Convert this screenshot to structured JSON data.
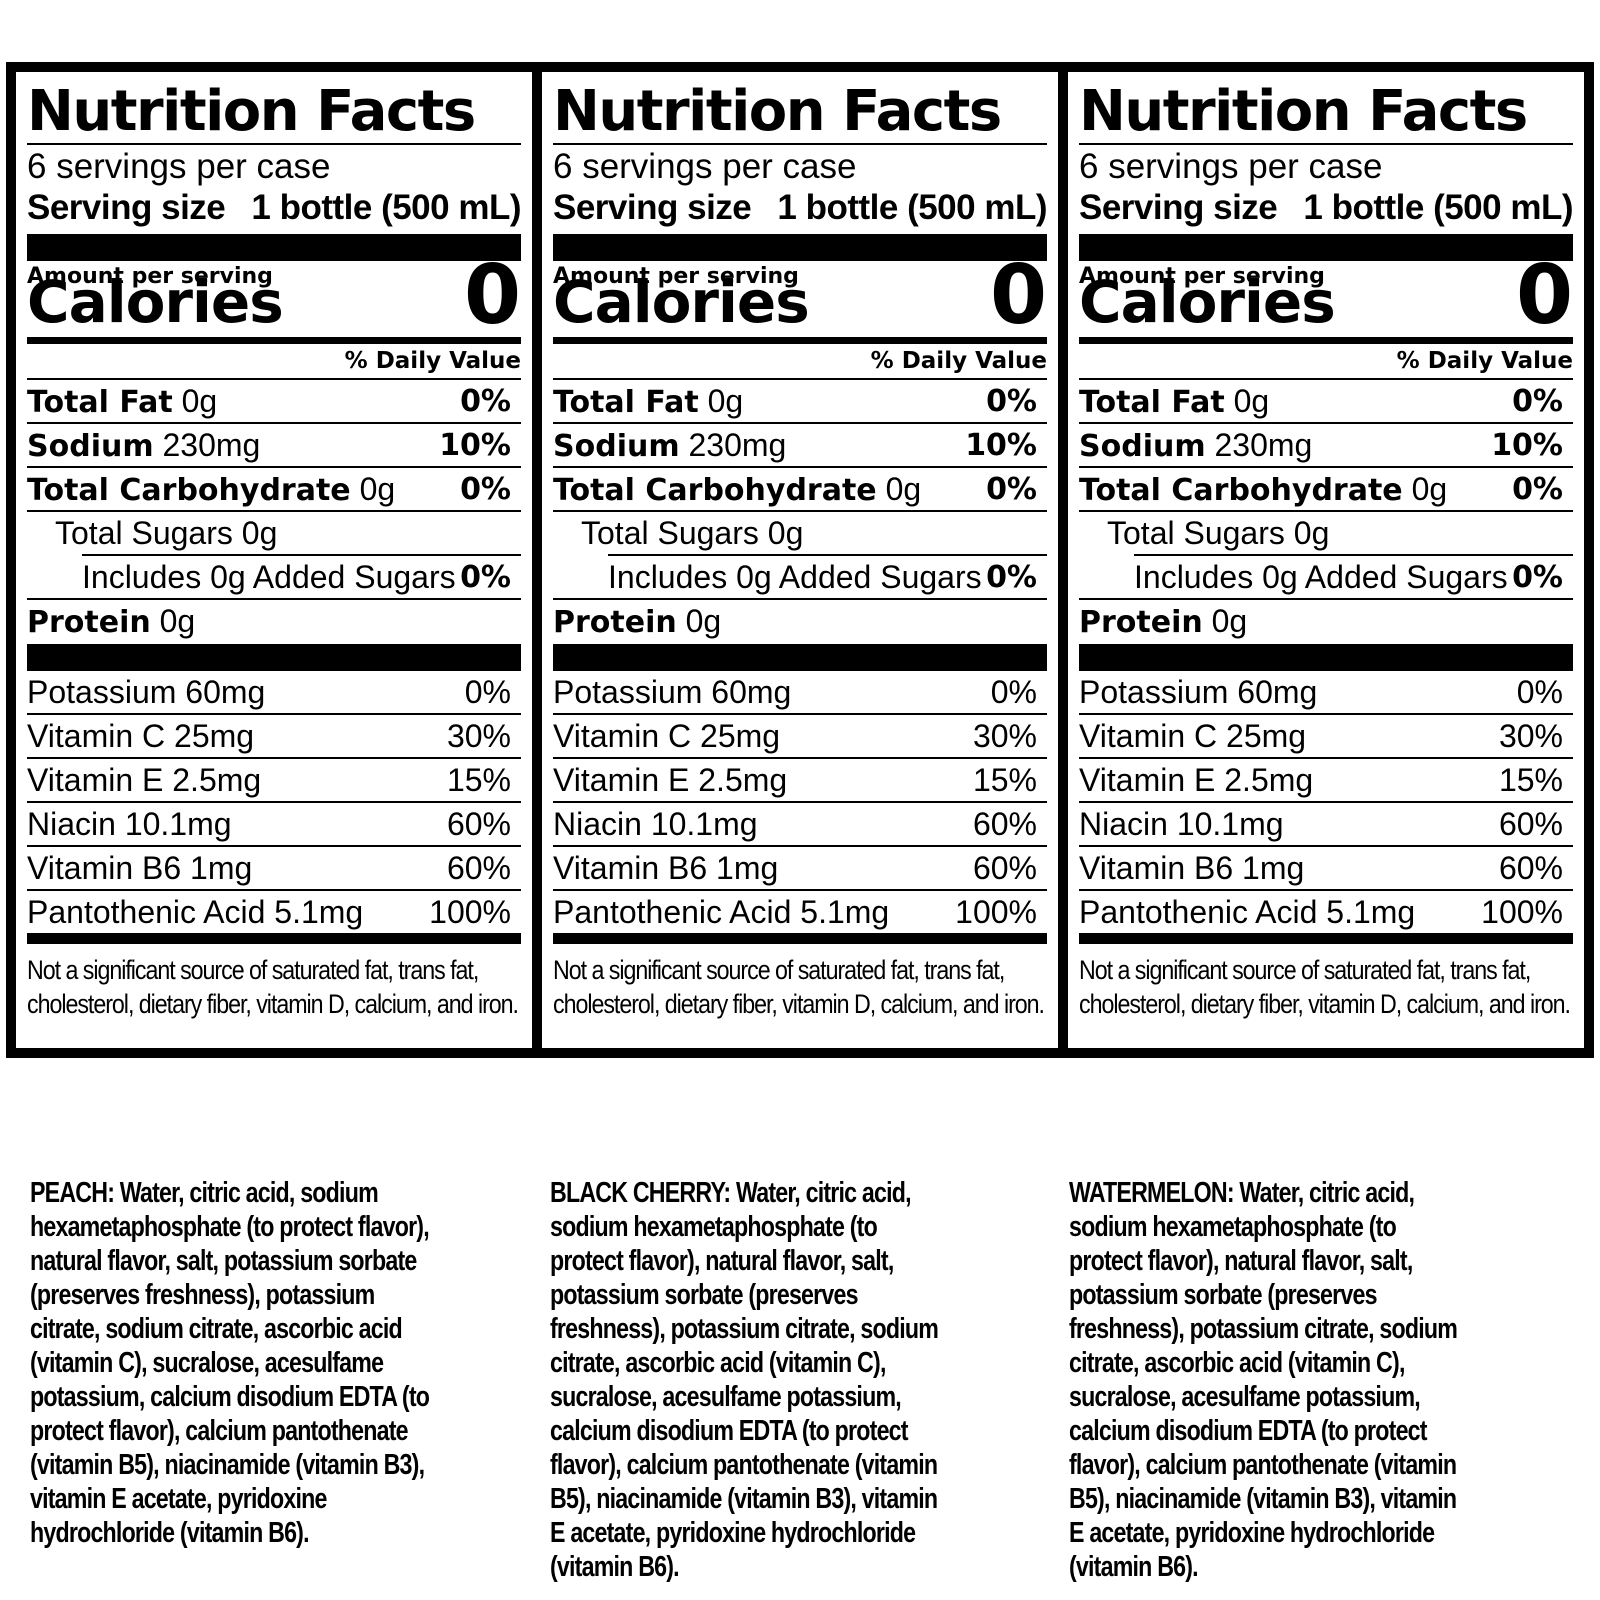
{
  "panels": [
    {
      "title": "Nutrition Facts",
      "servings_per_container": "6 servings per case",
      "serving_size_label": "Serving size",
      "serving_size_value": "1 bottle (500 mL)",
      "amount_per_serving": "Amount per serving",
      "calories_label": "Calories",
      "calories_value": "0",
      "daily_value_header": "% Daily Value",
      "nutrients": [
        {
          "label": "Total Fat",
          "amount": "0g",
          "dv": "0%"
        },
        {
          "label": "Sodium",
          "amount": "230mg",
          "dv": "10%"
        },
        {
          "label": "Total Carbohydrate",
          "amount": "0g",
          "dv": "0%"
        },
        {
          "label": "Total Sugars 0g",
          "amount": "",
          "dv": ""
        },
        {
          "label": "Includes 0g Added Sugars",
          "amount": "",
          "dv": "0%"
        },
        {
          "label": "Protein",
          "amount": "0g",
          "dv": ""
        }
      ],
      "vitamins": [
        {
          "label": "Potassium 60mg",
          "dv": "0%"
        },
        {
          "label": "Vitamin C 25mg",
          "dv": "30%"
        },
        {
          "label": "Vitamin E 2.5mg",
          "dv": "15%"
        },
        {
          "label": "Niacin 10.1mg",
          "dv": "60%"
        },
        {
          "label": "Vitamin B6 1mg",
          "dv": "60%"
        },
        {
          "label": "Pantothenic Acid 5.1mg",
          "dv": "100%"
        }
      ],
      "footnote": "Not a significant source of saturated fat, trans fat, cholesterol, dietary fiber, vitamin D, calcium, and iron."
    },
    {
      "title": "Nutrition Facts",
      "servings_per_container": "6 servings per case",
      "serving_size_label": "Serving size",
      "serving_size_value": "1 bottle (500 mL)",
      "amount_per_serving": "Amount per serving",
      "calories_label": "Calories",
      "calories_value": "0",
      "daily_value_header": "% Daily Value",
      "nutrients": [
        {
          "label": "Total Fat",
          "amount": "0g",
          "dv": "0%"
        },
        {
          "label": "Sodium",
          "amount": "230mg",
          "dv": "10%"
        },
        {
          "label": "Total Carbohydrate",
          "amount": "0g",
          "dv": "0%"
        },
        {
          "label": "Total Sugars 0g",
          "amount": "",
          "dv": ""
        },
        {
          "label": "Includes 0g Added Sugars",
          "amount": "",
          "dv": "0%"
        },
        {
          "label": "Protein",
          "amount": "0g",
          "dv": ""
        }
      ],
      "vitamins": [
        {
          "label": "Potassium 60mg",
          "dv": "0%"
        },
        {
          "label": "Vitamin C 25mg",
          "dv": "30%"
        },
        {
          "label": "Vitamin E 2.5mg",
          "dv": "15%"
        },
        {
          "label": "Niacin 10.1mg",
          "dv": "60%"
        },
        {
          "label": "Vitamin B6 1mg",
          "dv": "60%"
        },
        {
          "label": "Pantothenic Acid 5.1mg",
          "dv": "100%"
        }
      ],
      "footnote": "Not a significant source of saturated fat, trans fat, cholesterol, dietary fiber, vitamin D, calcium, and iron."
    },
    {
      "title": "Nutrition Facts",
      "servings_per_container": "6 servings per case",
      "serving_size_label": "Serving size",
      "serving_size_value": "1 bottle (500 mL)",
      "amount_per_serving": "Amount per serving",
      "calories_label": "Calories",
      "calories_value": "0",
      "daily_value_header": "% Daily Value",
      "nutrients": [
        {
          "label": "Total Fat",
          "amount": "0g",
          "dv": "0%"
        },
        {
          "label": "Sodium",
          "amount": "230mg",
          "dv": "10%"
        },
        {
          "label": "Total Carbohydrate",
          "amount": "0g",
          "dv": "0%"
        },
        {
          "label": "Total Sugars 0g",
          "amount": "",
          "dv": ""
        },
        {
          "label": "Includes 0g Added Sugars",
          "amount": "",
          "dv": "0%"
        },
        {
          "label": "Protein",
          "amount": "0g",
          "dv": ""
        }
      ],
      "vitamins": [
        {
          "label": "Potassium 60mg",
          "dv": "0%"
        },
        {
          "label": "Vitamin C 25mg",
          "dv": "30%"
        },
        {
          "label": "Vitamin E 2.5mg",
          "dv": "15%"
        },
        {
          "label": "Niacin 10.1mg",
          "dv": "60%"
        },
        {
          "label": "Vitamin B6 1mg",
          "dv": "60%"
        },
        {
          "label": "Pantothenic Acid 5.1mg",
          "dv": "100%"
        }
      ],
      "footnote": "Not a significant source of saturated fat, trans fat, cholesterol, dietary fiber, vitamin D, calcium, and iron."
    }
  ],
  "ingredients": [
    "PEACH: Water, citric acid, sodium hexametaphosphate (to protect flavor), natural flavor, salt, potassium sorbate (preserves freshness), potassium citrate, sodium citrate, ascorbic acid (vitamin C), sucralose, acesulfame potassium, calcium disodium EDTA (to protect flavor), calcium pantothenate (vitamin B5), niacinamide (vitamin B3), vitamin E acetate, pyridoxine hydrochloride (vitamin B6).",
    "BLACK CHERRY: Water, citric acid, sodium hexametaphosphate (to protect flavor), natural flavor, salt, potassium sorbate (preserves freshness), potassium citrate, sodium citrate, ascorbic acid (vitamin C), sucralose, acesulfame potassium, calcium disodium EDTA (to protect flavor), calcium pantothenate (vitamin B5), niacinamide (vitamin B3), vitamin E acetate, pyridoxine hydrochloride (vitamin B6).",
    "WATERMELON: Water, citric acid, sodium hexametaphosphate (to protect flavor), natural flavor, salt, potassium sorbate (preserves freshness), potassium citrate, sodium citrate, ascorbic acid (vitamin C), sucralose, acesulfame potassium, calcium disodium EDTA (to protect flavor), calcium pantothenate (vitamin B5), niacinamide (vitamin B3), vitamin E acetate, pyridoxine hydrochloride (vitamin B6)."
  ]
}
